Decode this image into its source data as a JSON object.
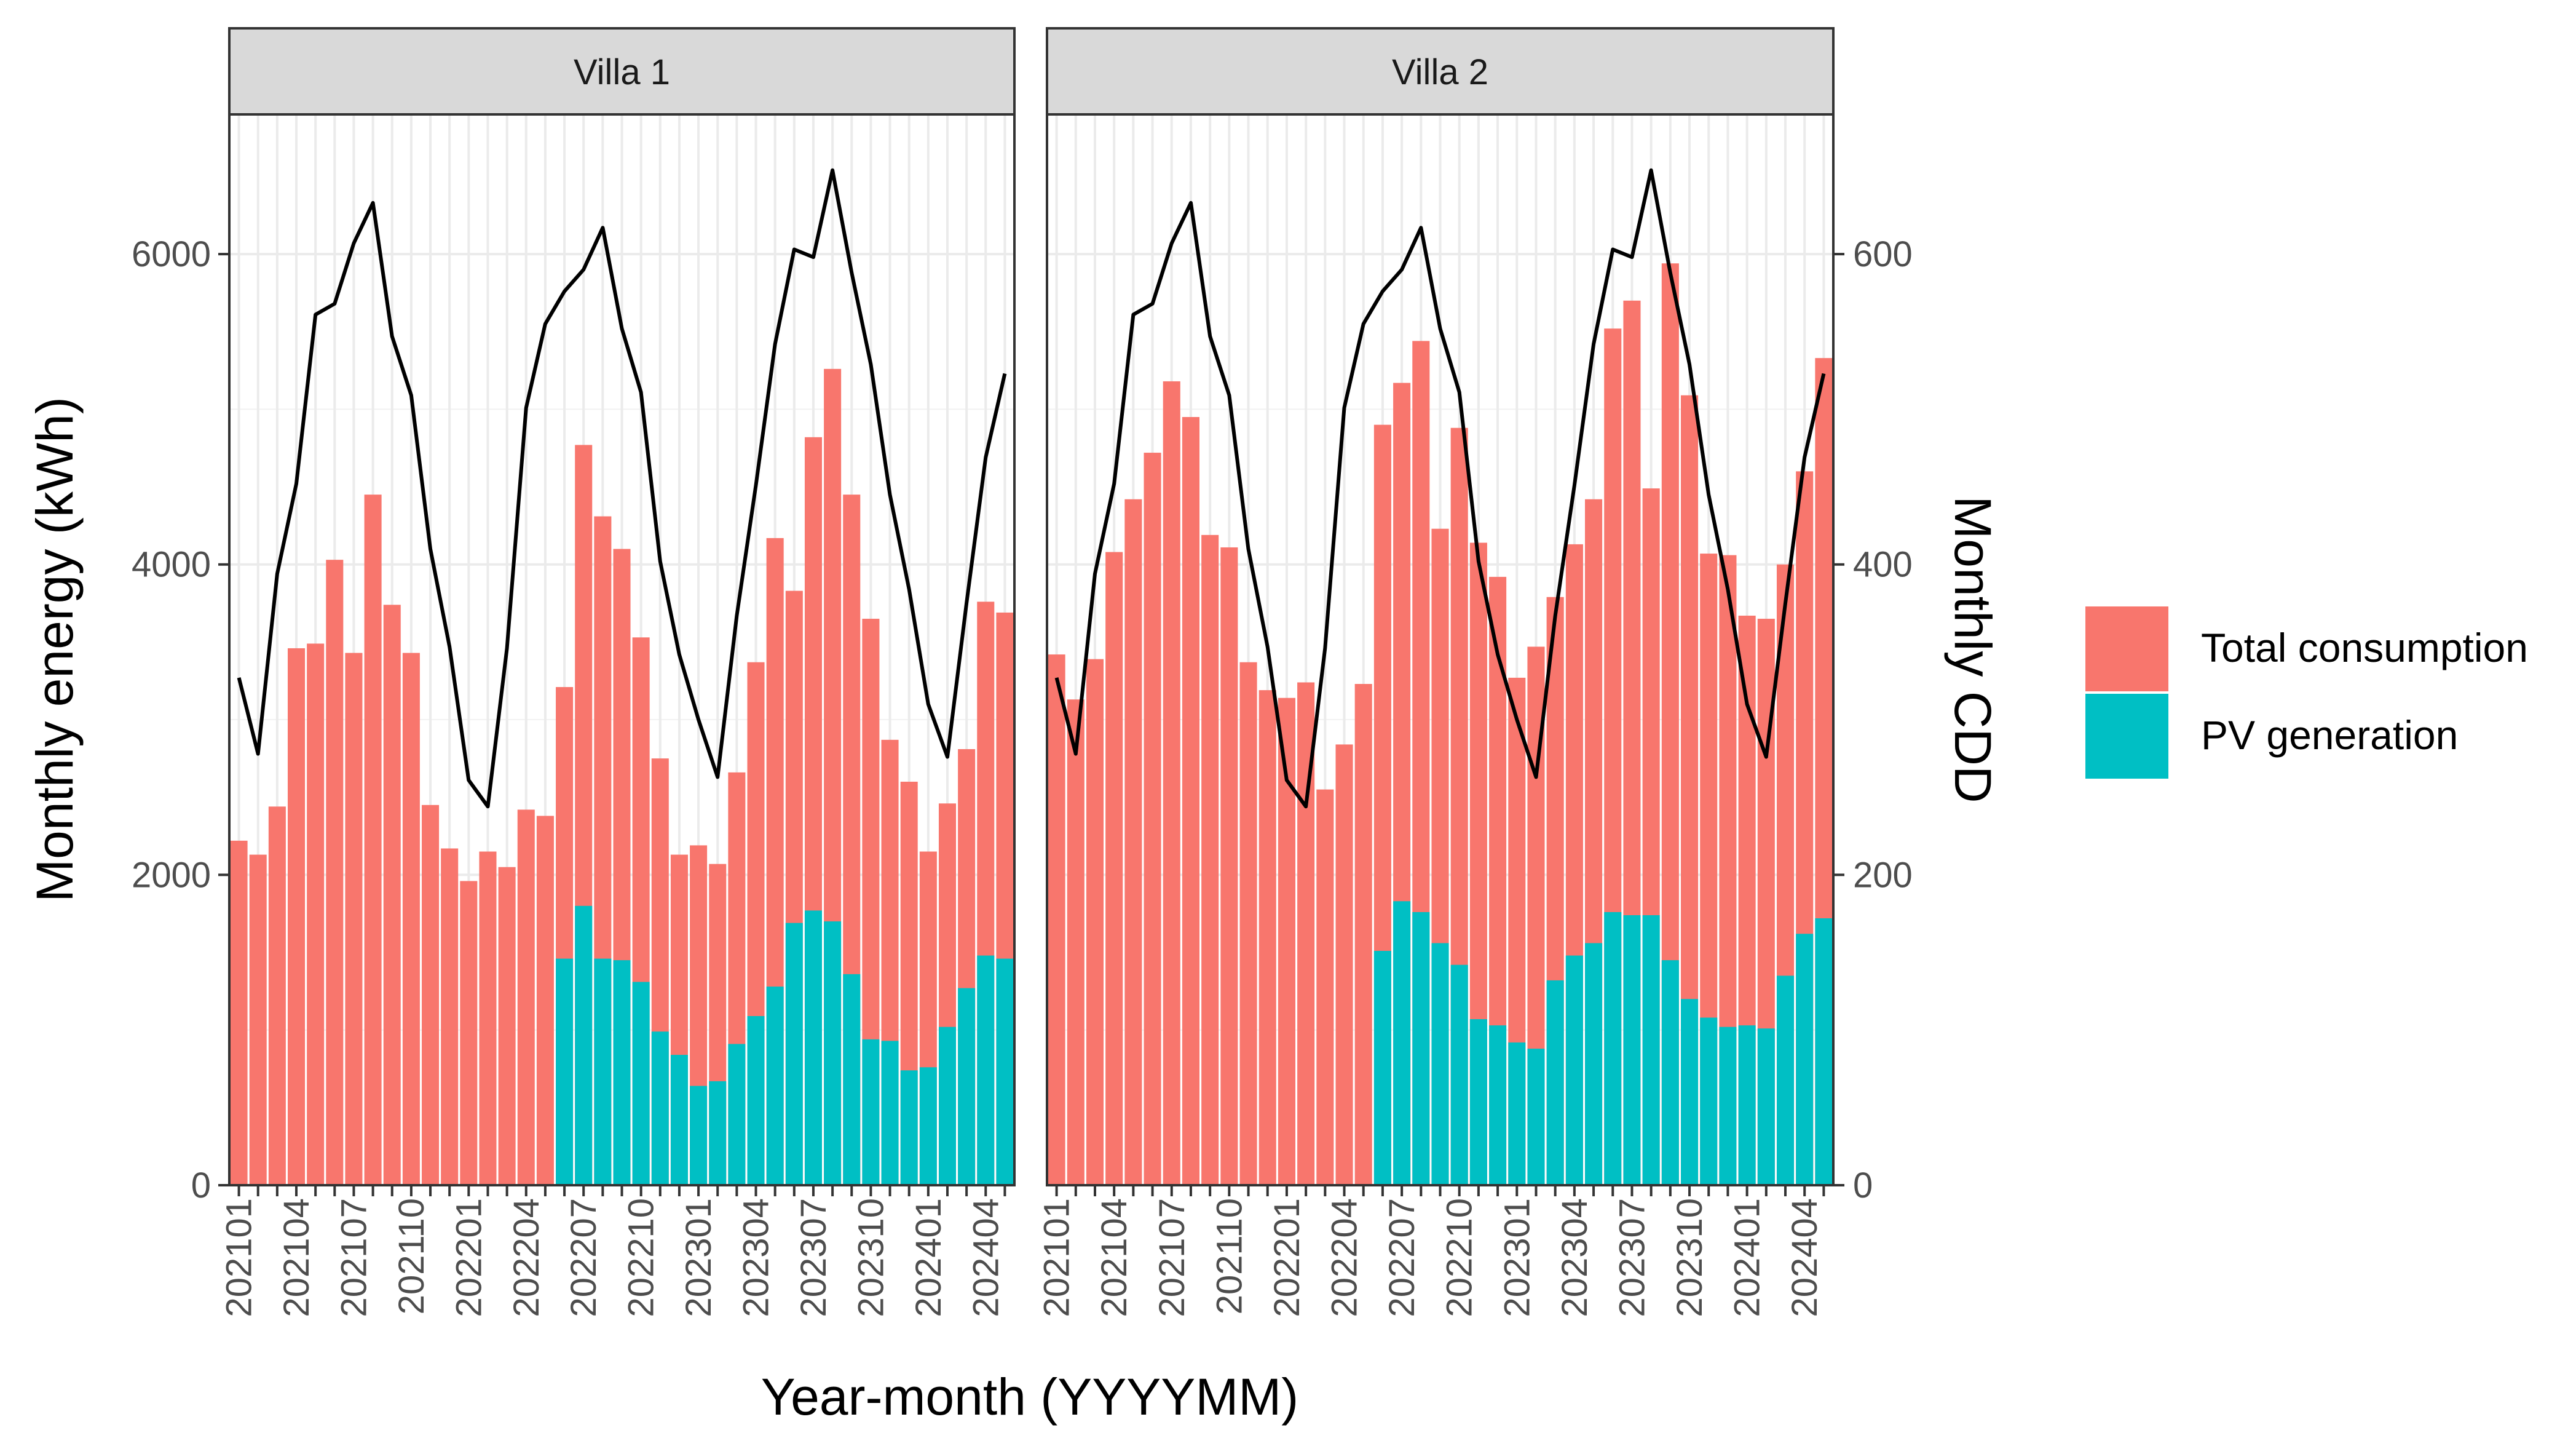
{
  "chart_data": {
    "type": "bar",
    "subtype": "stacked bar with secondary-axis line, faceted",
    "xlabel": "Year-month (YYYYMM)",
    "ylabel": "Monthly energy (kWh)",
    "y2label": "Monthly CDD",
    "ylim": [
      0,
      6900
    ],
    "y_ticks": [
      "0",
      "2000",
      "4000",
      "6000"
    ],
    "y2lim": [
      0,
      690
    ],
    "y2_ticks": [
      "0",
      "200",
      "400",
      "600"
    ],
    "y2_scale_factor": 10,
    "x_tick_labels": [
      "202101",
      "202104",
      "202107",
      "202110",
      "202201",
      "202204",
      "202207",
      "202210",
      "202301",
      "202304",
      "202307",
      "202310",
      "202401",
      "202404"
    ],
    "legend": [
      {
        "name": "Total consumption",
        "color": "#F8766D"
      },
      {
        "name": "PV generation",
        "color": "#00BFC4"
      }
    ],
    "line_color": "#000000",
    "grid": true,
    "legend_position": "right",
    "facets": [
      {
        "title": "Villa 1",
        "total_consumption": [
          2220,
          2130,
          2440,
          3460,
          3490,
          4030,
          3430,
          4450,
          3740,
          3430,
          2450,
          2170,
          1960,
          2150,
          2050,
          2420,
          2380,
          3210,
          4770,
          4310,
          4100,
          3530,
          2750,
          2130,
          2190,
          2070,
          2660,
          3370,
          4170,
          3830,
          4820,
          5260,
          4450,
          3650,
          2870,
          2600,
          2150,
          2460,
          2810,
          3760,
          3690
        ],
        "pv_generation": [
          0,
          0,
          0,
          0,
          0,
          0,
          0,
          0,
          0,
          0,
          0,
          0,
          0,
          0,
          0,
          0,
          0,
          1460,
          1800,
          1460,
          1450,
          1310,
          990,
          840,
          640,
          670,
          910,
          1090,
          1280,
          1690,
          1770,
          1700,
          1360,
          940,
          930,
          740,
          760,
          1020,
          1270,
          1480,
          1460
        ],
        "monthly_cdd": [
          327,
          278,
          394,
          452,
          561,
          568,
          607,
          633,
          547,
          509,
          410,
          347,
          261,
          244,
          346,
          501,
          555,
          576,
          590,
          617,
          552,
          511,
          402,
          342,
          300,
          263,
          367,
          451,
          542,
          603,
          598,
          654,
          588,
          529,
          445,
          384,
          310,
          276,
          375,
          469,
          523
        ]
      },
      {
        "title": "Villa 2",
        "total_consumption": [
          3420,
          3130,
          3390,
          4080,
          4420,
          4720,
          5180,
          4950,
          4190,
          4110,
          3370,
          3190,
          3140,
          3240,
          2550,
          2840,
          3230,
          4900,
          5170,
          5440,
          4230,
          4880,
          4140,
          3920,
          3270,
          3470,
          3790,
          4130,
          4420,
          5520,
          5700,
          4490,
          5940,
          5090,
          4070,
          4060,
          3670,
          3650,
          4000,
          4600,
          5330
        ],
        "pv_generation": [
          0,
          0,
          0,
          0,
          0,
          0,
          0,
          0,
          0,
          0,
          0,
          0,
          0,
          0,
          0,
          0,
          0,
          1510,
          1830,
          1760,
          1560,
          1420,
          1070,
          1030,
          920,
          880,
          1320,
          1480,
          1560,
          1760,
          1740,
          1740,
          1450,
          1200,
          1080,
          1020,
          1030,
          1010,
          1350,
          1620,
          1720
        ],
        "monthly_cdd": [
          327,
          278,
          394,
          452,
          561,
          568,
          607,
          633,
          547,
          509,
          410,
          347,
          261,
          244,
          346,
          501,
          555,
          576,
          590,
          617,
          552,
          511,
          402,
          342,
          300,
          263,
          367,
          451,
          542,
          603,
          598,
          654,
          588,
          529,
          445,
          384,
          310,
          276,
          375,
          469,
          523
        ]
      }
    ]
  }
}
